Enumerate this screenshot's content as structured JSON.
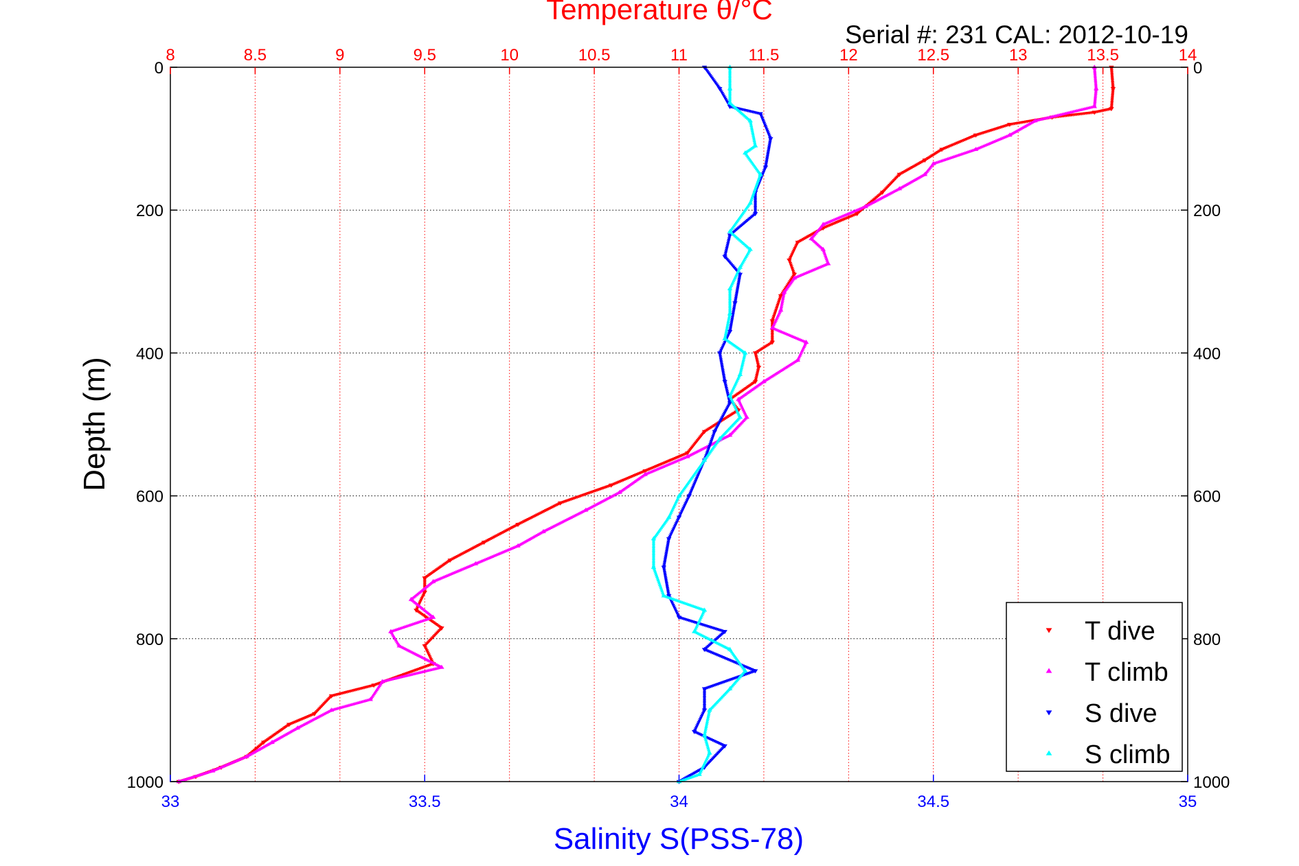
{
  "chart_data": {
    "type": "scatter",
    "title": "Temperature θ/°C",
    "subtitle": "Serial #: 231  CAL: 2012-10-19",
    "xlabel": "Salinity S(PSS-78)",
    "ylabel": "Depth (m)",
    "colors": {
      "temperature_axis": "#ff0000",
      "salinity_axis": "#0000ff",
      "grid_vertical": "#ff0000",
      "grid_horizontal": "#000000"
    },
    "axes": {
      "depth": {
        "range": [
          0,
          1000
        ],
        "reversed": true,
        "ticks": [
          0,
          200,
          400,
          600,
          800,
          1000
        ],
        "tick_labels": [
          "0",
          "200",
          "400",
          "600",
          "800",
          "1000"
        ]
      },
      "temperature": {
        "range": [
          8,
          14
        ],
        "position": "top",
        "ticks": [
          8,
          8.5,
          9,
          9.5,
          10,
          10.5,
          11,
          11.5,
          12,
          12.5,
          13,
          13.5,
          14
        ],
        "tick_labels": [
          "8",
          "8.5",
          "9",
          "9.5",
          "10",
          "10.5",
          "11",
          "11.5",
          "12",
          "12.5",
          "13",
          "13.5",
          "14"
        ]
      },
      "salinity": {
        "range": [
          33,
          35
        ],
        "position": "bottom",
        "ticks": [
          33,
          33.5,
          34,
          34.5,
          35
        ],
        "tick_labels": [
          "33",
          "33.5",
          "34",
          "34.5",
          "35"
        ]
      }
    },
    "grid": true,
    "legend_position": "bottom-right",
    "series": [
      {
        "name": "T dive",
        "marker": "down-triangle",
        "color": "#ff0000",
        "axis": "temperature",
        "points": [
          [
            13.55,
            0
          ],
          [
            13.56,
            30
          ],
          [
            13.55,
            58
          ],
          [
            13.45,
            63
          ],
          [
            13.2,
            70
          ],
          [
            12.95,
            80
          ],
          [
            12.75,
            95
          ],
          [
            12.55,
            115
          ],
          [
            12.45,
            130
          ],
          [
            12.3,
            150
          ],
          [
            12.2,
            175
          ],
          [
            12.05,
            205
          ],
          [
            11.85,
            225
          ],
          [
            11.7,
            245
          ],
          [
            11.65,
            270
          ],
          [
            11.68,
            290
          ],
          [
            11.6,
            320
          ],
          [
            11.55,
            355
          ],
          [
            11.55,
            385
          ],
          [
            11.45,
            400
          ],
          [
            11.47,
            420
          ],
          [
            11.45,
            440
          ],
          [
            11.3,
            465
          ],
          [
            11.35,
            480
          ],
          [
            11.15,
            510
          ],
          [
            11.05,
            540
          ],
          [
            10.8,
            565
          ],
          [
            10.6,
            585
          ],
          [
            10.3,
            610
          ],
          [
            10.05,
            640
          ],
          [
            9.85,
            665
          ],
          [
            9.65,
            690
          ],
          [
            9.5,
            715
          ],
          [
            9.5,
            735
          ],
          [
            9.45,
            760
          ],
          [
            9.6,
            785
          ],
          [
            9.5,
            810
          ],
          [
            9.55,
            835
          ],
          [
            9.2,
            865
          ],
          [
            8.95,
            880
          ],
          [
            8.85,
            905
          ],
          [
            8.7,
            920
          ],
          [
            8.55,
            945
          ],
          [
            8.45,
            965
          ],
          [
            8.3,
            980
          ],
          [
            8.15,
            993
          ],
          [
            8.05,
            1000
          ]
        ]
      },
      {
        "name": "T climb",
        "marker": "up-triangle",
        "color": "#ff00ff",
        "axis": "temperature",
        "points": [
          [
            13.45,
            0
          ],
          [
            13.46,
            30
          ],
          [
            13.45,
            55
          ],
          [
            13.1,
            75
          ],
          [
            12.95,
            95
          ],
          [
            12.75,
            115
          ],
          [
            12.5,
            135
          ],
          [
            12.45,
            150
          ],
          [
            12.3,
            170
          ],
          [
            12.1,
            195
          ],
          [
            11.85,
            220
          ],
          [
            11.78,
            240
          ],
          [
            11.85,
            255
          ],
          [
            11.88,
            275
          ],
          [
            11.68,
            295
          ],
          [
            11.62,
            315
          ],
          [
            11.6,
            340
          ],
          [
            11.55,
            365
          ],
          [
            11.75,
            385
          ],
          [
            11.7,
            410
          ],
          [
            11.5,
            440
          ],
          [
            11.35,
            465
          ],
          [
            11.4,
            490
          ],
          [
            11.3,
            515
          ],
          [
            11.05,
            545
          ],
          [
            10.8,
            570
          ],
          [
            10.65,
            595
          ],
          [
            10.45,
            620
          ],
          [
            10.2,
            650
          ],
          [
            10.05,
            670
          ],
          [
            9.8,
            695
          ],
          [
            9.55,
            720
          ],
          [
            9.42,
            745
          ],
          [
            9.55,
            770
          ],
          [
            9.3,
            790
          ],
          [
            9.35,
            810
          ],
          [
            9.6,
            840
          ],
          [
            9.25,
            860
          ],
          [
            9.18,
            885
          ],
          [
            8.95,
            900
          ],
          [
            8.75,
            925
          ],
          [
            8.6,
            945
          ],
          [
            8.45,
            965
          ],
          [
            8.25,
            985
          ],
          [
            8.05,
            1000
          ]
        ]
      },
      {
        "name": "S dive",
        "marker": "down-triangle",
        "color": "#0000ff",
        "axis": "salinity",
        "points": [
          [
            34.05,
            0
          ],
          [
            34.08,
            30
          ],
          [
            34.1,
            55
          ],
          [
            34.16,
            65
          ],
          [
            34.18,
            100
          ],
          [
            34.17,
            140
          ],
          [
            34.15,
            175
          ],
          [
            34.15,
            205
          ],
          [
            34.1,
            235
          ],
          [
            34.09,
            265
          ],
          [
            34.12,
            290
          ],
          [
            34.11,
            330
          ],
          [
            34.1,
            370
          ],
          [
            34.08,
            400
          ],
          [
            34.09,
            440
          ],
          [
            34.1,
            470
          ],
          [
            34.07,
            510
          ],
          [
            34.05,
            550
          ],
          [
            34.02,
            600
          ],
          [
            34.0,
            630
          ],
          [
            33.98,
            660
          ],
          [
            33.97,
            700
          ],
          [
            33.98,
            740
          ],
          [
            34.0,
            770
          ],
          [
            34.09,
            790
          ],
          [
            34.05,
            815
          ],
          [
            34.15,
            845
          ],
          [
            34.05,
            870
          ],
          [
            34.05,
            900
          ],
          [
            34.03,
            930
          ],
          [
            34.09,
            950
          ],
          [
            34.05,
            980
          ],
          [
            34.0,
            1000
          ]
        ]
      },
      {
        "name": "S climb",
        "marker": "up-triangle",
        "color": "#00ffff",
        "axis": "salinity",
        "points": [
          [
            34.1,
            0
          ],
          [
            34.1,
            30
          ],
          [
            34.1,
            50
          ],
          [
            34.14,
            75
          ],
          [
            34.15,
            110
          ],
          [
            34.13,
            120
          ],
          [
            34.16,
            150
          ],
          [
            34.14,
            190
          ],
          [
            34.1,
            230
          ],
          [
            34.14,
            255
          ],
          [
            34.12,
            280
          ],
          [
            34.1,
            310
          ],
          [
            34.1,
            345
          ],
          [
            34.09,
            380
          ],
          [
            34.13,
            400
          ],
          [
            34.12,
            430
          ],
          [
            34.1,
            460
          ],
          [
            34.12,
            490
          ],
          [
            34.08,
            520
          ],
          [
            34.05,
            550
          ],
          [
            34.0,
            600
          ],
          [
            33.98,
            630
          ],
          [
            33.95,
            660
          ],
          [
            33.95,
            700
          ],
          [
            33.97,
            740
          ],
          [
            34.05,
            760
          ],
          [
            34.03,
            790
          ],
          [
            34.1,
            815
          ],
          [
            34.13,
            845
          ],
          [
            34.1,
            870
          ],
          [
            34.06,
            900
          ],
          [
            34.05,
            935
          ],
          [
            34.06,
            960
          ],
          [
            34.04,
            990
          ],
          [
            34.0,
            1000
          ]
        ]
      }
    ]
  }
}
